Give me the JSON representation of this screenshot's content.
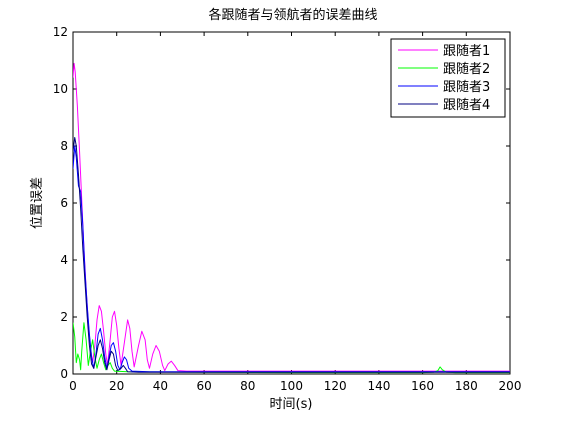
{
  "chart_data": {
    "type": "line",
    "title": "各跟随者与领航者的误差曲线",
    "xlabel": "时间(s)",
    "ylabel": "位置误差",
    "xlim": [
      0,
      200
    ],
    "ylim": [
      0,
      12
    ],
    "x_ticks": [
      0,
      20,
      40,
      60,
      80,
      100,
      120,
      140,
      160,
      180,
      200
    ],
    "y_ticks": [
      0,
      2,
      4,
      6,
      8,
      10,
      12
    ],
    "grid": false,
    "legend_position": "top-right",
    "series": [
      {
        "name": "跟随者1",
        "color": "#ff00ff",
        "points": [
          [
            0,
            10.4
          ],
          [
            0.5,
            10.9
          ],
          [
            1,
            10.6
          ],
          [
            2,
            9.4
          ],
          [
            3,
            7.8
          ],
          [
            4,
            6.1
          ],
          [
            5,
            4.4
          ],
          [
            6,
            3.0
          ],
          [
            7,
            1.8
          ],
          [
            8,
            0.9
          ],
          [
            9,
            0.4
          ],
          [
            10,
            1.0
          ],
          [
            11,
            1.9
          ],
          [
            12,
            2.4
          ],
          [
            13,
            2.2
          ],
          [
            14,
            1.5
          ],
          [
            15,
            0.7
          ],
          [
            15.8,
            0.3
          ],
          [
            17,
            1.2
          ],
          [
            18,
            2.0
          ],
          [
            19,
            2.2
          ],
          [
            20,
            1.7
          ],
          [
            21,
            0.9
          ],
          [
            22,
            0.3
          ],
          [
            23.5,
            1.1
          ],
          [
            25,
            1.9
          ],
          [
            26,
            1.6
          ],
          [
            27,
            0.8
          ],
          [
            28,
            0.25
          ],
          [
            30,
            1.0
          ],
          [
            31.5,
            1.5
          ],
          [
            33,
            1.2
          ],
          [
            34,
            0.5
          ],
          [
            35,
            0.2
          ],
          [
            36.5,
            0.7
          ],
          [
            38,
            1.0
          ],
          [
            39.5,
            0.8
          ],
          [
            41,
            0.3
          ],
          [
            42,
            0.12
          ],
          [
            43.5,
            0.35
          ],
          [
            45,
            0.45
          ],
          [
            46.5,
            0.3
          ],
          [
            48,
            0.12
          ],
          [
            52,
            0.1
          ],
          [
            80,
            0.1
          ],
          [
            120,
            0.1
          ],
          [
            160,
            0.1
          ],
          [
            200,
            0.1
          ]
        ]
      },
      {
        "name": "跟随者2",
        "color": "#00ff00",
        "points": [
          [
            0,
            1.8
          ],
          [
            0.8,
            1.3
          ],
          [
            1.5,
            0.4
          ],
          [
            2.2,
            0.7
          ],
          [
            3,
            0.5
          ],
          [
            3.5,
            0.15
          ],
          [
            4,
            0.8
          ],
          [
            5,
            1.8
          ],
          [
            6,
            1.2
          ],
          [
            7,
            0.3
          ],
          [
            8,
            0.8
          ],
          [
            9,
            1.2
          ],
          [
            10,
            0.6
          ],
          [
            11,
            0.2
          ],
          [
            12,
            0.5
          ],
          [
            13,
            0.7
          ],
          [
            14,
            0.4
          ],
          [
            15,
            0.15
          ],
          [
            16,
            0.3
          ],
          [
            17,
            0.4
          ],
          [
            18,
            0.2
          ],
          [
            19,
            0.1
          ],
          [
            25,
            0.08
          ],
          [
            60,
            0.06
          ],
          [
            100,
            0.05
          ],
          [
            140,
            0.05
          ],
          [
            160,
            0.05
          ],
          [
            165,
            0.06
          ],
          [
            167,
            0.12
          ],
          [
            168,
            0.25
          ],
          [
            169,
            0.15
          ],
          [
            171,
            0.06
          ],
          [
            175,
            0.05
          ],
          [
            200,
            0.05
          ]
        ]
      },
      {
        "name": "跟随者3",
        "color": "#0000ff",
        "points": [
          [
            0,
            7.2
          ],
          [
            0.8,
            8.0
          ],
          [
            1.5,
            7.6
          ],
          [
            2.5,
            6.6
          ],
          [
            3.5,
            6.4
          ],
          [
            4.5,
            5.2
          ],
          [
            5.5,
            3.6
          ],
          [
            6.5,
            2.4
          ],
          [
            7.5,
            1.4
          ],
          [
            8.5,
            0.6
          ],
          [
            9.5,
            0.2
          ],
          [
            10.5,
            0.7
          ],
          [
            11.5,
            1.4
          ],
          [
            12.5,
            1.6
          ],
          [
            13.5,
            1.2
          ],
          [
            14.5,
            0.6
          ],
          [
            15.5,
            0.2
          ],
          [
            16.5,
            0.6
          ],
          [
            17.5,
            1.0
          ],
          [
            18.5,
            1.1
          ],
          [
            19.5,
            0.8
          ],
          [
            20.5,
            0.3
          ],
          [
            21.5,
            0.15
          ],
          [
            22.5,
            0.4
          ],
          [
            23.5,
            0.6
          ],
          [
            24.5,
            0.5
          ],
          [
            25.5,
            0.2
          ],
          [
            27,
            0.1
          ],
          [
            35,
            0.08
          ],
          [
            200,
            0.08
          ]
        ]
      },
      {
        "name": "跟随者4",
        "color": "#000080",
        "points": [
          [
            0,
            7.8
          ],
          [
            0.8,
            8.3
          ],
          [
            1.5,
            8.0
          ],
          [
            2.5,
            7.0
          ],
          [
            3.5,
            5.8
          ],
          [
            4.5,
            4.4
          ],
          [
            5.5,
            3.2
          ],
          [
            6.5,
            2.0
          ],
          [
            7.5,
            1.0
          ],
          [
            8.5,
            0.35
          ],
          [
            9.5,
            0.2
          ],
          [
            10.5,
            0.6
          ],
          [
            11.5,
            1.0
          ],
          [
            12.5,
            1.2
          ],
          [
            13.5,
            0.9
          ],
          [
            14.5,
            0.4
          ],
          [
            15.5,
            0.15
          ],
          [
            16.5,
            0.5
          ],
          [
            17.5,
            0.8
          ],
          [
            18.5,
            0.7
          ],
          [
            19.5,
            0.3
          ],
          [
            20.5,
            0.12
          ],
          [
            22,
            0.2
          ],
          [
            23,
            0.3
          ],
          [
            24,
            0.2
          ],
          [
            25,
            0.08
          ],
          [
            30,
            0.06
          ],
          [
            200,
            0.06
          ]
        ]
      }
    ]
  }
}
